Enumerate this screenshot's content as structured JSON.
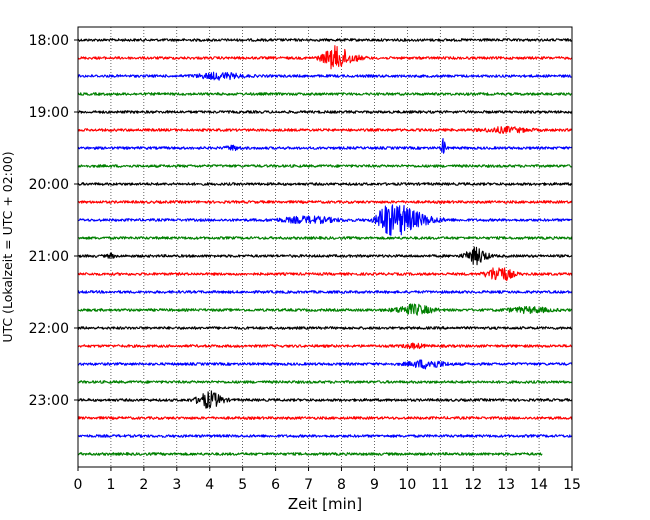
{
  "chart_data": {
    "type": "line",
    "xlabel": "Zeit  [min]",
    "ylabel": "UTC (Lokalzeit = UTC + 02:00)",
    "xlim": [
      0,
      15
    ],
    "x_ticks": [
      0,
      1,
      2,
      3,
      4,
      5,
      6,
      7,
      8,
      9,
      10,
      11,
      12,
      13,
      14,
      15
    ],
    "grid": "vertical dotted",
    "y_tick_labels": [
      "18:00",
      "19:00",
      "20:00",
      "21:00",
      "22:00",
      "23:00"
    ],
    "trace_interval_minutes": 15,
    "colors": [
      "#000000",
      "#ff0000",
      "#0000ff",
      "#008000"
    ],
    "traces": [
      {
        "start": "18:00",
        "end_min": 15,
        "events": []
      },
      {
        "start": "18:15",
        "end_min": 15,
        "events": [
          {
            "t": 7.8,
            "amp": 10,
            "dur": 0.35
          },
          {
            "t": 8.2,
            "amp": 3,
            "dur": 0.4
          }
        ]
      },
      {
        "start": "18:30",
        "end_min": 15,
        "events": [
          {
            "t": 4.3,
            "amp": 3,
            "dur": 0.6
          }
        ]
      },
      {
        "start": "18:45",
        "end_min": 15,
        "events": []
      },
      {
        "start": "19:00",
        "end_min": 15,
        "events": []
      },
      {
        "start": "19:15",
        "end_min": 15,
        "events": [
          {
            "t": 13.0,
            "amp": 2.5,
            "dur": 0.6
          }
        ]
      },
      {
        "start": "19:30",
        "end_min": 15,
        "events": [
          {
            "t": 11.1,
            "amp": 9,
            "dur": 0.06
          },
          {
            "t": 4.7,
            "amp": 2,
            "dur": 0.2
          }
        ]
      },
      {
        "start": "19:45",
        "end_min": 15,
        "events": []
      },
      {
        "start": "20:00",
        "end_min": 15,
        "events": []
      },
      {
        "start": "20:15",
        "end_min": 15,
        "events": []
      },
      {
        "start": "20:30",
        "end_min": 15,
        "events": [
          {
            "t": 7.0,
            "amp": 3,
            "dur": 0.8
          },
          {
            "t": 9.3,
            "amp": 9,
            "dur": 0.2
          },
          {
            "t": 9.7,
            "amp": 13,
            "dur": 0.45
          },
          {
            "t": 10.3,
            "amp": 5,
            "dur": 0.6
          }
        ]
      },
      {
        "start": "20:45",
        "end_min": 15,
        "events": []
      },
      {
        "start": "21:00",
        "end_min": 15,
        "events": [
          {
            "t": 12.1,
            "amp": 8,
            "dur": 0.3
          },
          {
            "t": 1.0,
            "amp": 2,
            "dur": 0.1
          }
        ]
      },
      {
        "start": "21:15",
        "end_min": 15,
        "events": [
          {
            "t": 12.8,
            "amp": 8,
            "dur": 0.35
          }
        ]
      },
      {
        "start": "21:30",
        "end_min": 15,
        "events": []
      },
      {
        "start": "21:45",
        "end_min": 15,
        "events": [
          {
            "t": 10.2,
            "amp": 5,
            "dur": 0.5
          },
          {
            "t": 13.7,
            "amp": 2.5,
            "dur": 0.6
          }
        ]
      },
      {
        "start": "22:00",
        "end_min": 15,
        "events": []
      },
      {
        "start": "22:15",
        "end_min": 15,
        "events": [
          {
            "t": 10.2,
            "amp": 2,
            "dur": 0.3
          }
        ]
      },
      {
        "start": "22:30",
        "end_min": 15,
        "events": [
          {
            "t": 10.6,
            "amp": 4,
            "dur": 0.5
          }
        ]
      },
      {
        "start": "22:45",
        "end_min": 15,
        "events": []
      },
      {
        "start": "23:00",
        "end_min": 15,
        "events": [
          {
            "t": 4.0,
            "amp": 8,
            "dur": 0.35
          }
        ]
      },
      {
        "start": "23:15",
        "end_min": 15,
        "events": []
      },
      {
        "start": "23:30",
        "end_min": 15,
        "events": []
      },
      {
        "start": "23:45",
        "end_min": 14.1,
        "events": []
      }
    ]
  }
}
